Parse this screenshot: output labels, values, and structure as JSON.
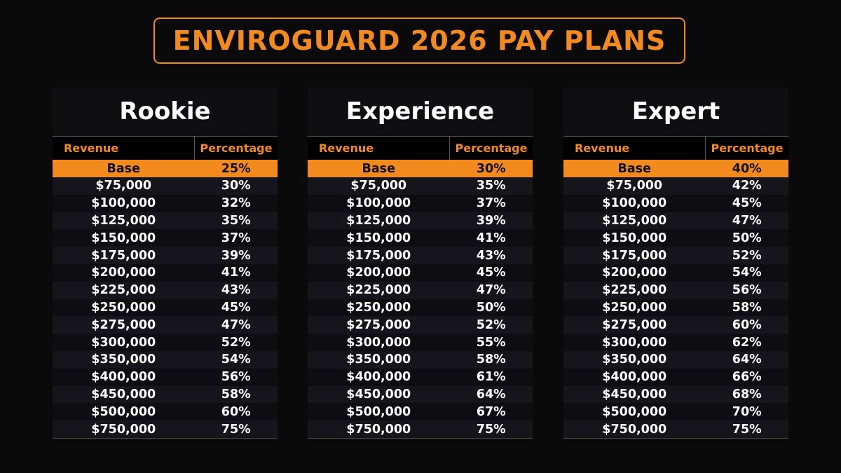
{
  "title": "ENVIROGUARD 2026 PAY PLANS",
  "accent_color": "#f28a1e",
  "columns": {
    "revenue": "Revenue",
    "percentage": "Percentage"
  },
  "plans": [
    {
      "name": "Rookie",
      "rows": [
        [
          "Base",
          "25%"
        ],
        [
          "$75,000",
          "30%"
        ],
        [
          "$100,000",
          "32%"
        ],
        [
          "$125,000",
          "35%"
        ],
        [
          "$150,000",
          "37%"
        ],
        [
          "$175,000",
          "39%"
        ],
        [
          "$200,000",
          "41%"
        ],
        [
          "$225,000",
          "43%"
        ],
        [
          "$250,000",
          "45%"
        ],
        [
          "$275,000",
          "47%"
        ],
        [
          "$300,000",
          "52%"
        ],
        [
          "$350,000",
          "54%"
        ],
        [
          "$400,000",
          "56%"
        ],
        [
          "$450,000",
          "58%"
        ],
        [
          "$500,000",
          "60%"
        ],
        [
          "$750,000",
          "75%"
        ]
      ]
    },
    {
      "name": "Experience",
      "rows": [
        [
          "Base",
          "30%"
        ],
        [
          "$75,000",
          "35%"
        ],
        [
          "$100,000",
          "37%"
        ],
        [
          "$125,000",
          "39%"
        ],
        [
          "$150,000",
          "41%"
        ],
        [
          "$175,000",
          "43%"
        ],
        [
          "$200,000",
          "45%"
        ],
        [
          "$225,000",
          "47%"
        ],
        [
          "$250,000",
          "50%"
        ],
        [
          "$275,000",
          "52%"
        ],
        [
          "$300,000",
          "55%"
        ],
        [
          "$350,000",
          "58%"
        ],
        [
          "$400,000",
          "61%"
        ],
        [
          "$450,000",
          "64%"
        ],
        [
          "$500,000",
          "67%"
        ],
        [
          "$750,000",
          "75%"
        ]
      ]
    },
    {
      "name": "Expert",
      "rows": [
        [
          "Base",
          "40%"
        ],
        [
          "$75,000",
          "42%"
        ],
        [
          "$100,000",
          "45%"
        ],
        [
          "$125,000",
          "47%"
        ],
        [
          "$150,000",
          "50%"
        ],
        [
          "$175,000",
          "52%"
        ],
        [
          "$200,000",
          "54%"
        ],
        [
          "$225,000",
          "56%"
        ],
        [
          "$250,000",
          "58%"
        ],
        [
          "$275,000",
          "60%"
        ],
        [
          "$300,000",
          "62%"
        ],
        [
          "$350,000",
          "64%"
        ],
        [
          "$400,000",
          "66%"
        ],
        [
          "$450,000",
          "68%"
        ],
        [
          "$500,000",
          "70%"
        ],
        [
          "$750,000",
          "75%"
        ]
      ]
    }
  ]
}
